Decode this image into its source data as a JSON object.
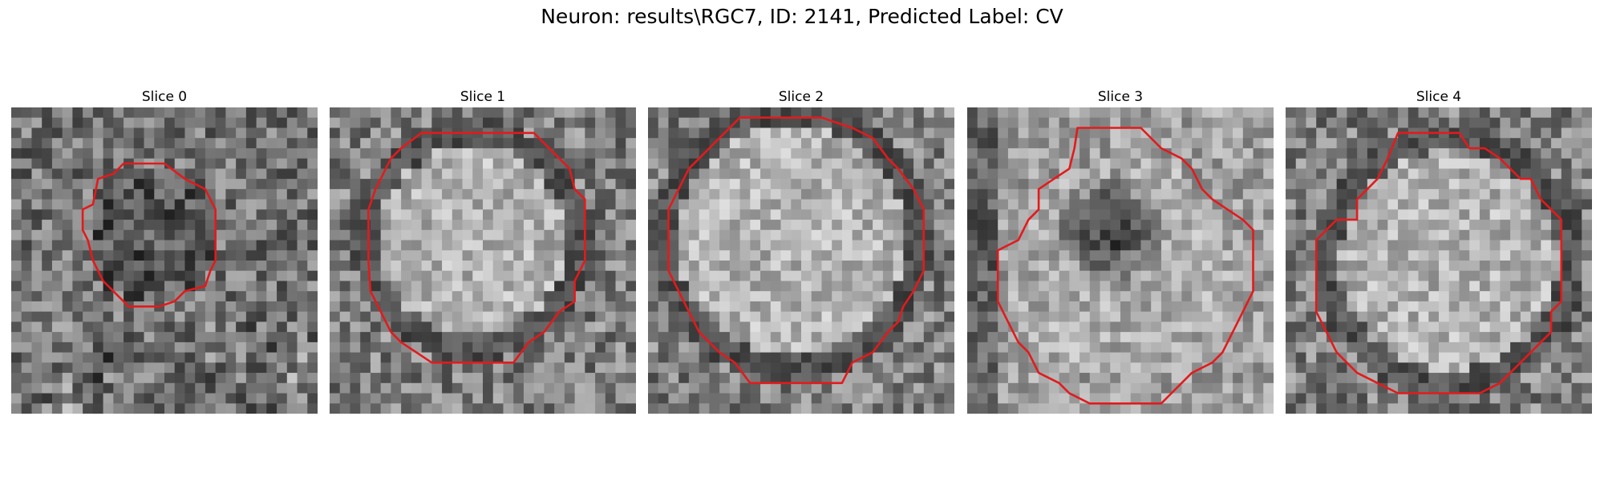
{
  "figure": {
    "title": "Neuron: results\\RGC7, ID: 2141, Predicted Label: CV"
  },
  "colors": {
    "background": "#ffffff",
    "contour": "#e31a1c",
    "text": "#000000"
  },
  "slices": [
    {
      "title": "Slice 0"
    },
    {
      "title": "Slice 1"
    },
    {
      "title": "Slice 2"
    },
    {
      "title": "Slice 3"
    },
    {
      "title": "Slice 4"
    }
  ]
}
